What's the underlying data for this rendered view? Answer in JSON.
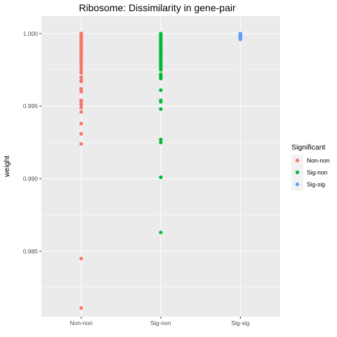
{
  "chart_data": {
    "type": "scatter",
    "title": "Ribosome: Dissimilarity in gene-pair",
    "xlabel": "",
    "ylabel": "weight",
    "categories": [
      "Non-non",
      "Sig-non",
      "Sig-sig"
    ],
    "ylim": [
      0.9805,
      1.0012
    ],
    "yticks": [
      0.985,
      0.99,
      0.995,
      1.0
    ],
    "ytick_labels": [
      "0.985",
      "0.990",
      "0.995",
      "1.000"
    ],
    "grid": true,
    "legend": {
      "title": "Significant",
      "position": "right"
    },
    "series": [
      {
        "name": "Non-non",
        "color": "#F8766D",
        "category": "Non-non",
        "values": [
          1.0,
          1.0,
          1.0,
          0.9999,
          0.9998,
          0.9997,
          0.9996,
          0.9995,
          0.9995,
          0.9994,
          0.9993,
          0.9992,
          0.9991,
          0.999,
          0.9989,
          0.9988,
          0.9987,
          0.9986,
          0.9985,
          0.9984,
          0.9983,
          0.9981,
          0.998,
          0.9978,
          0.9976,
          0.9975,
          0.9973,
          0.997,
          0.9968,
          0.9967,
          0.9962,
          0.996,
          0.9954,
          0.9953,
          0.9951,
          0.9949,
          0.9946,
          0.9938,
          0.9931,
          0.9924,
          0.9845,
          0.9811
        ]
      },
      {
        "name": "Sig-non",
        "color": "#00BA38",
        "category": "Sig-non",
        "values": [
          1.0,
          0.9999,
          0.9998,
          0.9997,
          0.9996,
          0.9995,
          0.9994,
          0.9993,
          0.9992,
          0.9991,
          0.999,
          0.9989,
          0.9988,
          0.9987,
          0.9986,
          0.9985,
          0.9984,
          0.9983,
          0.9982,
          0.9981,
          0.998,
          0.9979,
          0.9978,
          0.9977,
          0.9976,
          0.9975,
          0.9972,
          0.9971,
          0.997,
          0.9969,
          0.9961,
          0.9954,
          0.9953,
          0.9948,
          0.9927,
          0.9925,
          0.9901,
          0.9863
        ]
      },
      {
        "name": "Sig-sig",
        "color": "#619CFF",
        "category": "Sig-sig",
        "values": [
          1.0,
          0.99995,
          0.9999,
          0.99985,
          0.9998,
          0.99975,
          0.9997,
          0.99965,
          0.9996
        ]
      }
    ]
  }
}
